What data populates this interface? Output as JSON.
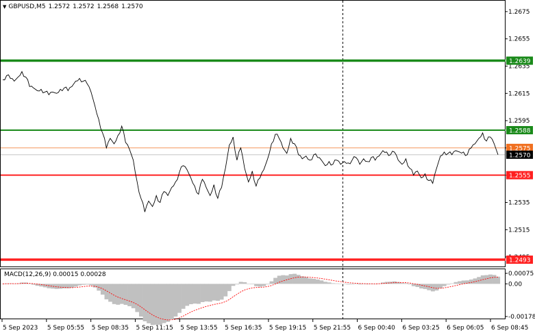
{
  "header": {
    "symbol_timeframe": "GBPUSD,M5",
    "open": "1.2572",
    "high": "1.2572",
    "low": "1.2568",
    "close": "1.2570"
  },
  "macd": {
    "label": "MACD(12,26,9)",
    "main_value": "0.00015",
    "signal_value": "0.00028",
    "axis_labels": [
      "0.00075",
      "0.00",
      "-0.00178"
    ]
  },
  "price_axis": {
    "ticks": [
      "1.2675",
      "1.2655",
      "1.2635",
      "1.2615",
      "1.2595",
      "1.2575",
      "1.2555",
      "1.2535",
      "1.2515",
      "1.2495"
    ],
    "level_tags": [
      {
        "value": "1.2639",
        "color": "#1a8a1a"
      },
      {
        "value": "1.2588",
        "color": "#1a8a1a"
      },
      {
        "value": "1.2575",
        "color": "#f07020"
      },
      {
        "value": "1.2570",
        "color": "#000000"
      },
      {
        "value": "1.2555",
        "color": "#ff2020"
      },
      {
        "value": "1.2493",
        "color": "#ff2020"
      }
    ]
  },
  "time_axis": {
    "labels": [
      "5 Sep 2023",
      "5 Sep 05:55",
      "5 Sep 08:35",
      "5 Sep 11:15",
      "5 Sep 13:55",
      "5 Sep 16:35",
      "5 Sep 19:15",
      "5 Sep 21:55",
      "6 Sep 00:40",
      "6 Sep 03:25",
      "6 Sep 06:05",
      "6 Sep 08:45"
    ]
  },
  "colors": {
    "resistance_strong": "#1a8a1a",
    "resistance": "#1a8a1a",
    "support": "#ff2020",
    "support_strong": "#ff2020",
    "ask_line": "#f07020",
    "bid_line": "#b0b0b0",
    "price_line": "#000000",
    "macd_histogram": "#c0c0c0",
    "macd_signal": "#ff0000"
  },
  "chart_data": {
    "type": "line",
    "title": "GBPUSD,M5",
    "ylim": [
      1.2488,
      1.2683
    ],
    "y_ticks": [
      1.2675,
      1.2655,
      1.2635,
      1.2615,
      1.2595,
      1.2575,
      1.2555,
      1.2535,
      1.2515,
      1.2495
    ],
    "horizontal_levels": [
      1.2639,
      1.2588,
      1.2555,
      1.2493
    ],
    "x_labels": [
      "5 Sep 2023",
      "5 Sep 05:55",
      "5 Sep 08:35",
      "5 Sep 11:15",
      "5 Sep 13:55",
      "5 Sep 16:35",
      "5 Sep 19:15",
      "5 Sep 21:55",
      "6 Sep 00:40",
      "6 Sep 03:25",
      "6 Sep 06:05",
      "6 Sep 08:45"
    ],
    "series": [
      {
        "values": [
          1.2625,
          1.2628,
          1.2626,
          1.2624,
          1.2627,
          1.2631,
          1.2627,
          1.262,
          1.2619,
          1.2617,
          1.2618,
          1.2616,
          1.2614,
          1.2616,
          1.2615,
          1.2618,
          1.2619,
          1.2617,
          1.262,
          1.2624,
          1.2626,
          1.2624,
          1.2622,
          1.2616,
          1.2606,
          1.2596,
          1.2586,
          1.2575,
          1.2582,
          1.2578,
          1.2584,
          1.2591,
          1.2579,
          1.2574,
          1.2566,
          1.255,
          1.2538,
          1.2528,
          1.2536,
          1.2532,
          1.254,
          1.2535,
          1.2543,
          1.254,
          1.2546,
          1.255,
          1.2557,
          1.2562,
          1.2559,
          1.2553,
          1.2547,
          1.2541,
          1.2552,
          1.2546,
          1.254,
          1.2548,
          1.2538,
          1.2546,
          1.256,
          1.2577,
          1.2583,
          1.2566,
          1.2575,
          1.256,
          1.255,
          1.2558,
          1.2547,
          1.2553,
          1.2559,
          1.2567,
          1.2578,
          1.2585,
          1.2582,
          1.2575,
          1.2571,
          1.2582,
          1.2578,
          1.257,
          1.2567,
          1.2569,
          1.2566,
          1.257,
          1.2568,
          1.2566,
          1.2562,
          1.2565,
          1.2563,
          1.2566,
          1.2563,
          1.2565,
          1.2564,
          1.2566,
          1.2568,
          1.2563,
          1.2567,
          1.2565,
          1.2568,
          1.2566,
          1.2569,
          1.2573,
          1.2572,
          1.257,
          1.2572,
          1.2566,
          1.2563,
          1.2567,
          1.256,
          1.2555,
          1.2558,
          1.2553,
          1.2556,
          1.2551,
          1.2549,
          1.256,
          1.2569,
          1.2572,
          1.2571,
          1.257,
          1.2573,
          1.2572,
          1.2572,
          1.257,
          1.2575,
          1.2578,
          1.2582,
          1.2586,
          1.258,
          1.2583,
          1.2578,
          1.257
        ]
      }
    ],
    "macd_panel": {
      "label": "MACD(12,26,9)",
      "ylim": [
        -0.00178,
        0.00075
      ],
      "main": 0.00015,
      "signal": 0.00028
    }
  }
}
